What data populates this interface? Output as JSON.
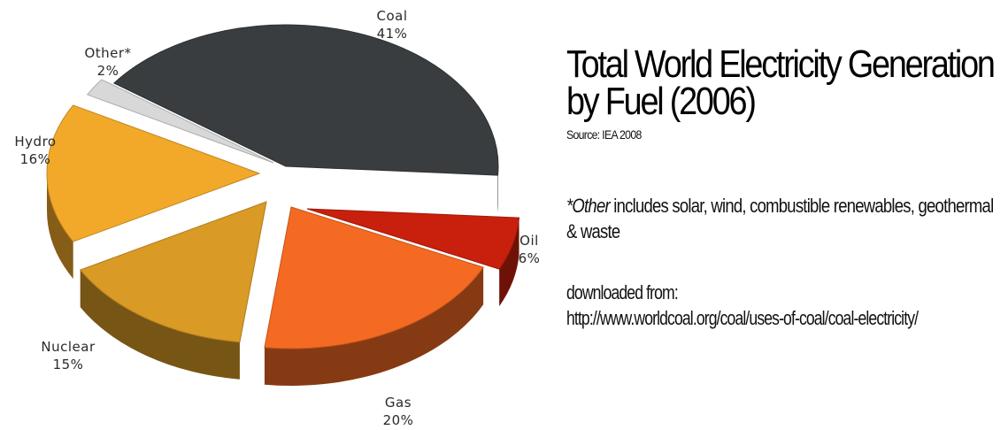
{
  "chart_data": {
    "type": "pie",
    "title_line1": "Total World Electricity Generation",
    "title_line2": "by Fuel (2006)",
    "source": "Source: IEA 2008",
    "slices": [
      {
        "name": "Coal",
        "value": 41,
        "label": "41%",
        "color": "#3a3d3f"
      },
      {
        "name": "Oil",
        "value": 6,
        "label": "6%",
        "color": "#c8200c"
      },
      {
        "name": "Gas",
        "value": 20,
        "label": "20%",
        "color": "#f46a22"
      },
      {
        "name": "Nuclear",
        "value": 15,
        "label": "15%",
        "color": "#d99a26"
      },
      {
        "name": "Hydro",
        "value": 16,
        "label": "16%",
        "color": "#f2a92a"
      },
      {
        "name": "Other*",
        "value": 2,
        "label": "2%",
        "color": "#d8d8d8"
      }
    ]
  },
  "note": {
    "emph": "*Other",
    "rest": " includes solar, wind, combustible renewables, geothermal & waste"
  },
  "download": {
    "line1": "downloaded from:",
    "line2": "http://www.worldcoal.org/coal/uses-of-coal/coal-electricity/"
  }
}
